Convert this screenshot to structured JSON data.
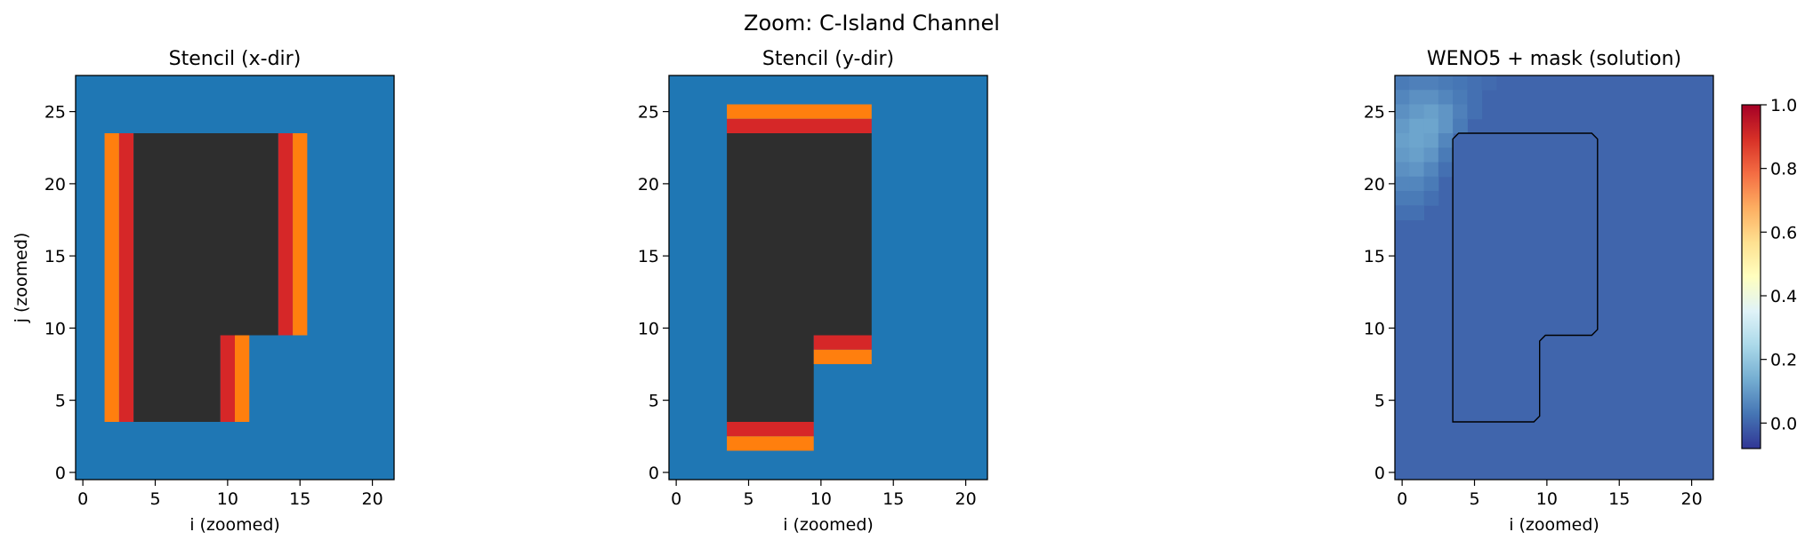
{
  "figure": {
    "suptitle": "Zoom: C-Island Channel"
  },
  "chart_data": [
    {
      "type": "heatmap",
      "title": "Stencil (x-dir)",
      "xlabel": "i (zoomed)",
      "ylabel": "j (zoomed)",
      "xlim": [
        -0.5,
        21.5
      ],
      "ylim": [
        -0.5,
        27.5
      ],
      "xticks": [
        0,
        5,
        10,
        15,
        20
      ],
      "yticks": [
        0,
        5,
        10,
        15,
        20,
        25
      ],
      "background_color": "#1f77b4",
      "cells": [
        {
          "i": [
            4,
            13
          ],
          "j": [
            10,
            23
          ],
          "role": "solid",
          "color": "#2e2e2e"
        },
        {
          "i": [
            4,
            9
          ],
          "j": [
            4,
            9
          ],
          "role": "solid",
          "color": "#2e2e2e"
        },
        {
          "i": [
            3,
            3
          ],
          "j": [
            4,
            23
          ],
          "role": "stencil-inner",
          "color": "#d62728"
        },
        {
          "i": [
            2,
            2
          ],
          "j": [
            4,
            23
          ],
          "role": "stencil-outer",
          "color": "#ff7f0e"
        },
        {
          "i": [
            14,
            14
          ],
          "j": [
            10,
            23
          ],
          "role": "stencil-inner",
          "color": "#d62728"
        },
        {
          "i": [
            15,
            15
          ],
          "j": [
            10,
            23
          ],
          "role": "stencil-outer",
          "color": "#ff7f0e"
        },
        {
          "i": [
            10,
            10
          ],
          "j": [
            4,
            9
          ],
          "role": "stencil-inner",
          "color": "#d62728"
        },
        {
          "i": [
            11,
            11
          ],
          "j": [
            4,
            9
          ],
          "role": "stencil-outer",
          "color": "#ff7f0e"
        }
      ]
    },
    {
      "type": "heatmap",
      "title": "Stencil (y-dir)",
      "xlabel": "i (zoomed)",
      "ylabel": "",
      "xlim": [
        -0.5,
        21.5
      ],
      "ylim": [
        -0.5,
        27.5
      ],
      "xticks": [
        0,
        5,
        10,
        15,
        20
      ],
      "yticks": [
        0,
        5,
        10,
        15,
        20,
        25
      ],
      "background_color": "#1f77b4",
      "cells": [
        {
          "i": [
            4,
            13
          ],
          "j": [
            10,
            23
          ],
          "role": "solid",
          "color": "#2e2e2e"
        },
        {
          "i": [
            4,
            9
          ],
          "j": [
            4,
            9
          ],
          "role": "solid",
          "color": "#2e2e2e"
        },
        {
          "i": [
            4,
            13
          ],
          "j": [
            24,
            24
          ],
          "role": "stencil-inner",
          "color": "#d62728"
        },
        {
          "i": [
            4,
            13
          ],
          "j": [
            25,
            25
          ],
          "role": "stencil-outer",
          "color": "#ff7f0e"
        },
        {
          "i": [
            4,
            9
          ],
          "j": [
            3,
            3
          ],
          "role": "stencil-inner",
          "color": "#d62728"
        },
        {
          "i": [
            4,
            9
          ],
          "j": [
            2,
            2
          ],
          "role": "stencil-outer",
          "color": "#ff7f0e"
        },
        {
          "i": [
            10,
            13
          ],
          "j": [
            9,
            9
          ],
          "role": "stencil-inner",
          "color": "#d62728"
        },
        {
          "i": [
            10,
            13
          ],
          "j": [
            8,
            8
          ],
          "role": "stencil-outer",
          "color": "#ff7f0e"
        }
      ]
    },
    {
      "type": "heatmap",
      "title": "WENO5 + mask (solution)",
      "xlabel": "i (zoomed)",
      "ylabel": "",
      "xlim": [
        -0.5,
        21.5
      ],
      "ylim": [
        -0.5,
        27.5
      ],
      "xticks": [
        0,
        5,
        10,
        15,
        20
      ],
      "yticks": [
        0,
        5,
        10,
        15,
        20,
        25
      ],
      "colormap": "RdYlBu_r",
      "background_value": 0.0,
      "blob_values": [
        {
          "i": 0,
          "j": 27,
          "v": 0.04
        },
        {
          "i": 1,
          "j": 27,
          "v": 0.05
        },
        {
          "i": 2,
          "j": 27,
          "v": 0.05
        },
        {
          "i": 3,
          "j": 27,
          "v": 0.04
        },
        {
          "i": 4,
          "j": 27,
          "v": 0.03
        },
        {
          "i": 5,
          "j": 27,
          "v": 0.02
        },
        {
          "i": 6,
          "j": 27,
          "v": 0.01
        },
        {
          "i": 0,
          "j": 26,
          "v": 0.06
        },
        {
          "i": 1,
          "j": 26,
          "v": 0.08
        },
        {
          "i": 2,
          "j": 26,
          "v": 0.08
        },
        {
          "i": 3,
          "j": 26,
          "v": 0.06
        },
        {
          "i": 4,
          "j": 26,
          "v": 0.04
        },
        {
          "i": 5,
          "j": 26,
          "v": 0.02
        },
        {
          "i": 0,
          "j": 25,
          "v": 0.08
        },
        {
          "i": 1,
          "j": 25,
          "v": 0.1
        },
        {
          "i": 2,
          "j": 25,
          "v": 0.11
        },
        {
          "i": 3,
          "j": 25,
          "v": 0.09
        },
        {
          "i": 4,
          "j": 25,
          "v": 0.05
        },
        {
          "i": 5,
          "j": 25,
          "v": 0.02
        },
        {
          "i": 0,
          "j": 24,
          "v": 0.1
        },
        {
          "i": 1,
          "j": 24,
          "v": 0.12
        },
        {
          "i": 2,
          "j": 24,
          "v": 0.12
        },
        {
          "i": 3,
          "j": 24,
          "v": 0.09
        },
        {
          "i": 4,
          "j": 24,
          "v": 0.04
        },
        {
          "i": 0,
          "j": 23,
          "v": 0.11
        },
        {
          "i": 1,
          "j": 23,
          "v": 0.12
        },
        {
          "i": 2,
          "j": 23,
          "v": 0.11
        },
        {
          "i": 3,
          "j": 23,
          "v": 0.06
        },
        {
          "i": 0,
          "j": 22,
          "v": 0.1
        },
        {
          "i": 1,
          "j": 22,
          "v": 0.11
        },
        {
          "i": 2,
          "j": 22,
          "v": 0.09
        },
        {
          "i": 3,
          "j": 22,
          "v": 0.04
        },
        {
          "i": 0,
          "j": 21,
          "v": 0.08
        },
        {
          "i": 1,
          "j": 21,
          "v": 0.09
        },
        {
          "i": 2,
          "j": 21,
          "v": 0.06
        },
        {
          "i": 3,
          "j": 21,
          "v": 0.02
        },
        {
          "i": 0,
          "j": 20,
          "v": 0.06
        },
        {
          "i": 1,
          "j": 20,
          "v": 0.06
        },
        {
          "i": 2,
          "j": 20,
          "v": 0.04
        },
        {
          "i": 0,
          "j": 19,
          "v": 0.04
        },
        {
          "i": 1,
          "j": 19,
          "v": 0.04
        },
        {
          "i": 2,
          "j": 19,
          "v": 0.02
        },
        {
          "i": 0,
          "j": 18,
          "v": 0.02
        },
        {
          "i": 1,
          "j": 18,
          "v": 0.02
        }
      ],
      "mask_outline": [
        [
          3.5,
          3.5
        ],
        [
          9.1,
          3.5
        ],
        [
          9.5,
          3.9
        ],
        [
          9.5,
          9.1
        ],
        [
          9.9,
          9.5
        ],
        [
          13.1,
          9.5
        ],
        [
          13.5,
          9.9
        ],
        [
          13.5,
          23.1
        ],
        [
          13.1,
          23.5
        ],
        [
          3.9,
          23.5
        ],
        [
          3.5,
          23.1
        ]
      ],
      "colorbar": {
        "vmin": -0.08,
        "vmax": 1.0,
        "ticks": [
          "0.0",
          "0.2",
          "0.4",
          "0.6",
          "0.8",
          "1.0"
        ]
      }
    }
  ]
}
